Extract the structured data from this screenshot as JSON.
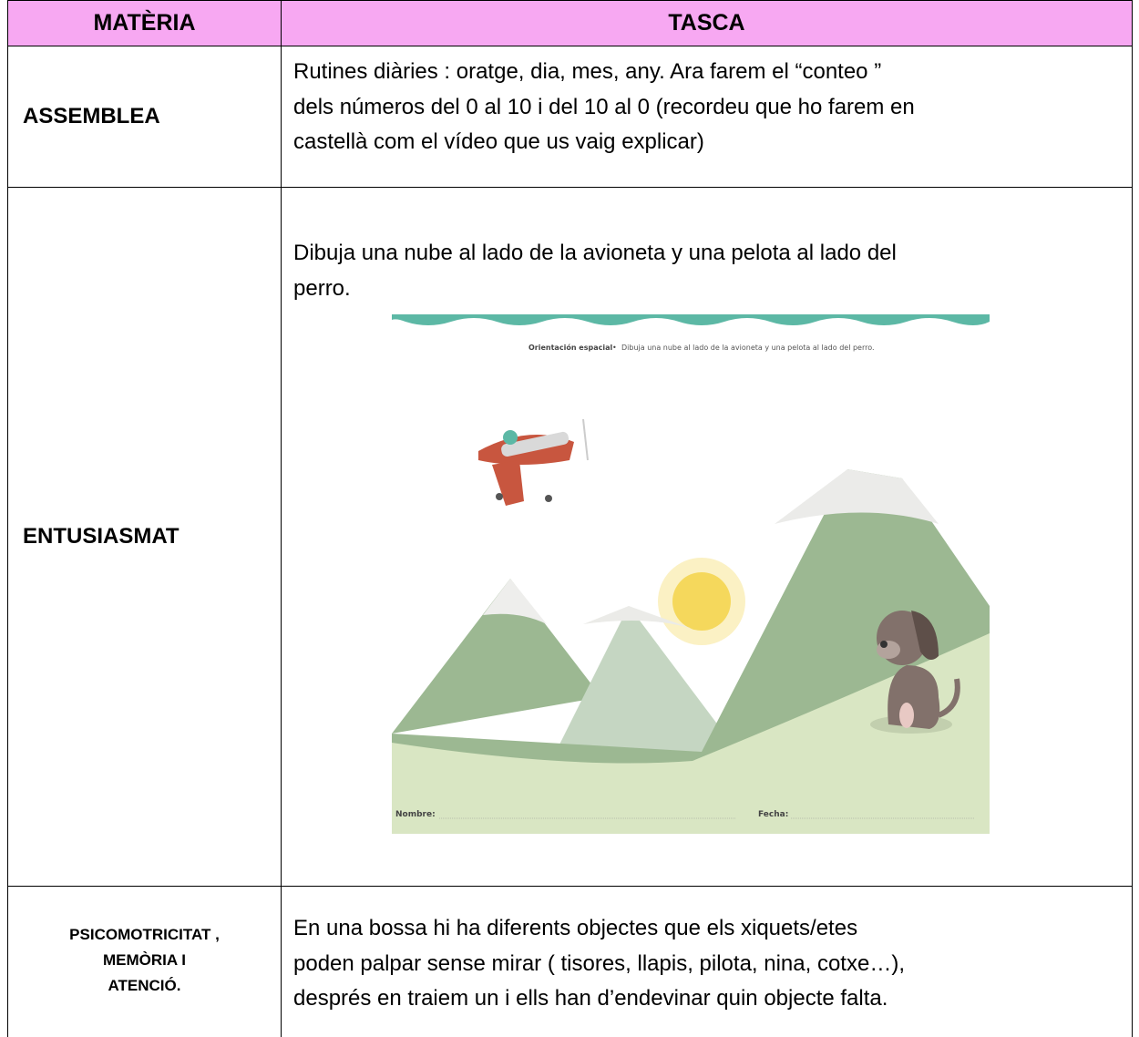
{
  "table": {
    "header": [
      "MATÈRIA",
      "TASCA"
    ],
    "rows": [
      {
        "subject": "ASSEMBLEA",
        "task": [
          "Rutines diàries : oratge, dia, mes, any. Ara farem el “conteo ”",
          "dels números del 0 al 10 i del 10 al 0 (recordeu que ho farem en",
          "castellà com el vídeo que us vaig explicar)"
        ]
      },
      {
        "subject": "ENTUSIASMAT",
        "task": [
          "Dibuja una nube al lado de la avioneta y una pelota al lado del",
          "perro."
        ],
        "worksheet": {
          "heading": "Orientación espacial",
          "separator": "•",
          "instruction": "Dibuja una nube al lado de la avioneta y una pelota al lado del perro.",
          "name_label": "Nombre:",
          "date_label": "Fecha:"
        }
      },
      {
        "subject": [
          "PSICOMOTRICITAT ,",
          "MEMÒRIA I",
          "ATENCIÓ."
        ],
        "task": [
          "En una bossa hi ha diferents objectes que els xiquets/etes",
          "poden palpar sense mirar ( tisores, llapis, pilota, nina, cotxe…),",
          "després en traiem un i ells han d’endevinar quin objecte falta."
        ]
      }
    ]
  }
}
